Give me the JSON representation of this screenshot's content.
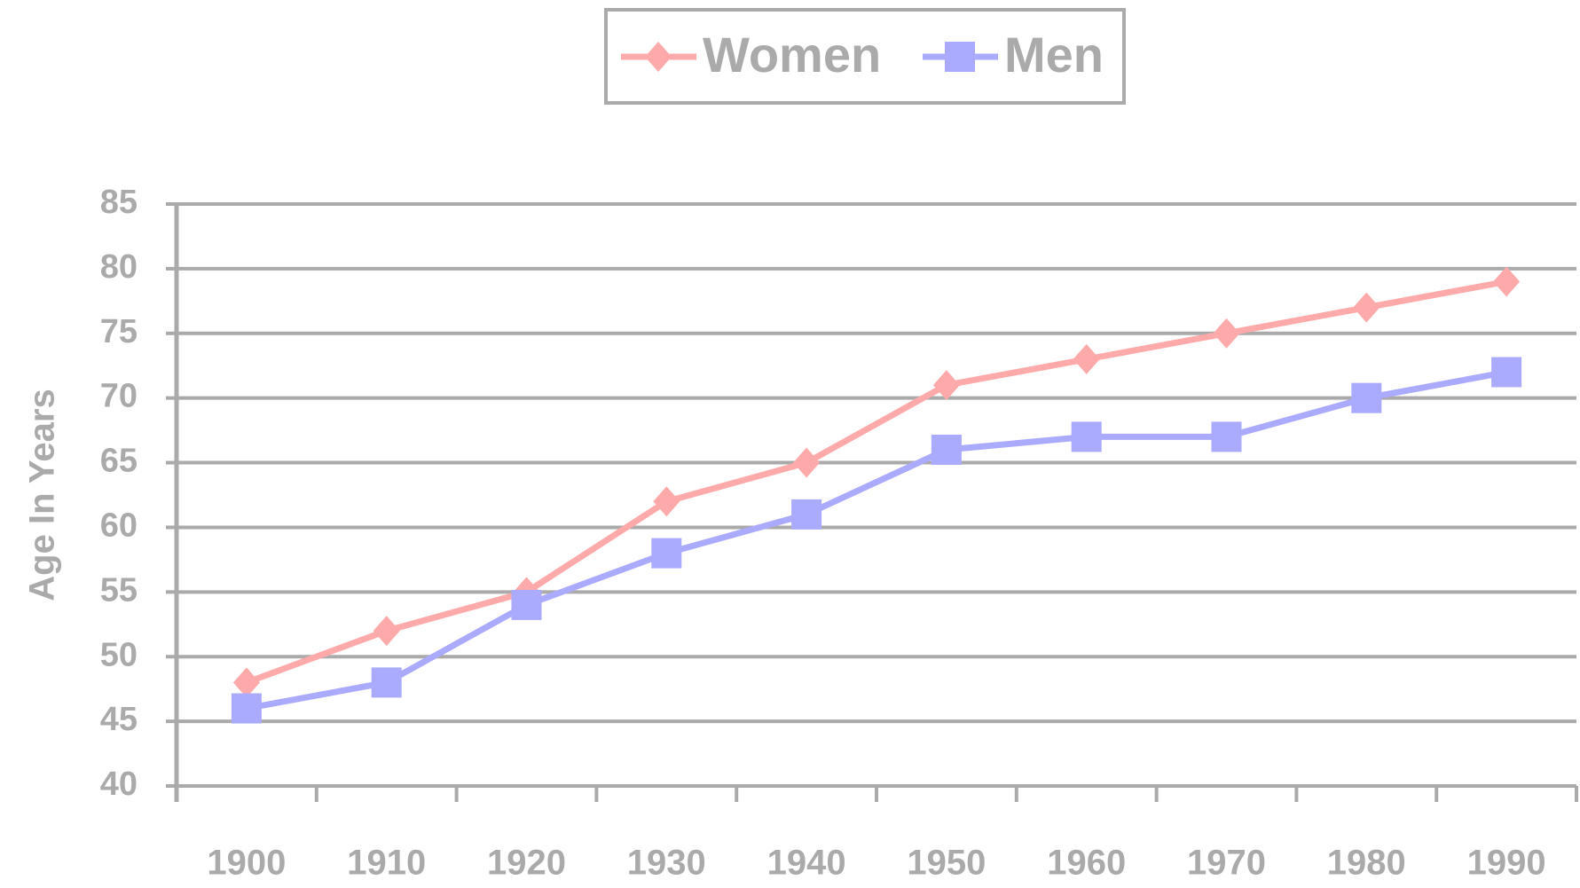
{
  "chart_data": {
    "type": "line",
    "y_label": "Age In Years",
    "categories": [
      "1900",
      "1910",
      "1920",
      "1930",
      "1940",
      "1950",
      "1960",
      "1970",
      "1980",
      "1990"
    ],
    "series": [
      {
        "name": "Women",
        "color": "#ffaaaa",
        "marker": "diamond",
        "values": [
          48,
          52,
          55,
          62,
          65,
          71,
          73,
          75,
          77,
          79
        ]
      },
      {
        "name": "Men",
        "color": "#aaaaff",
        "marker": "square",
        "values": [
          46,
          48,
          54,
          58,
          61,
          66,
          67,
          67,
          70,
          72
        ]
      }
    ],
    "ylim": [
      40,
      85
    ],
    "yticks": [
      40,
      45,
      50,
      55,
      60,
      65,
      70,
      75,
      80,
      85
    ],
    "grid": true,
    "legend": "top"
  }
}
